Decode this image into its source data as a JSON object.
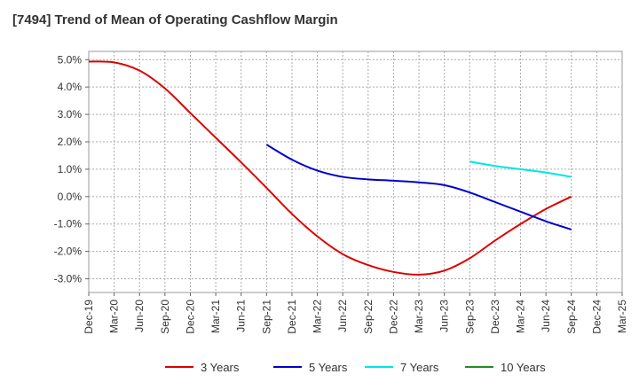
{
  "chart_data": {
    "type": "line",
    "title": "[7494]  Trend of Mean of Operating Cashflow Margin",
    "xlabel": "",
    "ylabel": "",
    "categories": [
      "Dec-19",
      "Mar-20",
      "Jun-20",
      "Sep-20",
      "Dec-20",
      "Mar-21",
      "Jun-21",
      "Sep-21",
      "Dec-21",
      "Mar-22",
      "Jun-22",
      "Sep-22",
      "Dec-22",
      "Mar-23",
      "Jun-23",
      "Sep-23",
      "Dec-23",
      "Mar-24",
      "Jun-24",
      "Sep-24",
      "Dec-24",
      "Mar-25"
    ],
    "y_ticks": [
      "5.0%",
      "4.0%",
      "3.0%",
      "2.0%",
      "1.0%",
      "0.0%",
      "-1.0%",
      "-2.0%",
      "-3.0%"
    ],
    "y_tick_values": [
      5,
      4,
      3,
      2,
      1,
      0,
      -1,
      -2,
      -3
    ],
    "ylim": [
      -3.5,
      5.3
    ],
    "grid": true,
    "legend_position": "bottom",
    "series": [
      {
        "name": "3 Years",
        "color": "#dd0000",
        "values": [
          4.93,
          4.9,
          4.6,
          3.95,
          3.05,
          2.15,
          1.25,
          0.32,
          -0.63,
          -1.45,
          -2.1,
          -2.5,
          -2.75,
          -2.85,
          -2.7,
          -2.25,
          -1.6,
          -1.0,
          -0.45,
          0.0,
          null,
          null
        ]
      },
      {
        "name": "5 Years",
        "color": "#0000cc",
        "values": [
          null,
          null,
          null,
          null,
          null,
          null,
          null,
          1.9,
          1.35,
          0.95,
          0.72,
          0.63,
          0.58,
          0.52,
          0.42,
          0.15,
          -0.2,
          -0.55,
          -0.9,
          -1.2,
          null,
          null
        ]
      },
      {
        "name": "7 Years",
        "color": "#00e5e5",
        "values": [
          null,
          null,
          null,
          null,
          null,
          null,
          null,
          null,
          null,
          null,
          null,
          null,
          null,
          null,
          null,
          1.28,
          1.12,
          1.0,
          0.88,
          0.72,
          null,
          null
        ]
      },
      {
        "name": "10 Years",
        "color": "#228b22",
        "values": [
          null,
          null,
          null,
          null,
          null,
          null,
          null,
          null,
          null,
          null,
          null,
          null,
          null,
          null,
          null,
          null,
          null,
          null,
          null,
          null,
          null,
          null
        ]
      }
    ]
  }
}
